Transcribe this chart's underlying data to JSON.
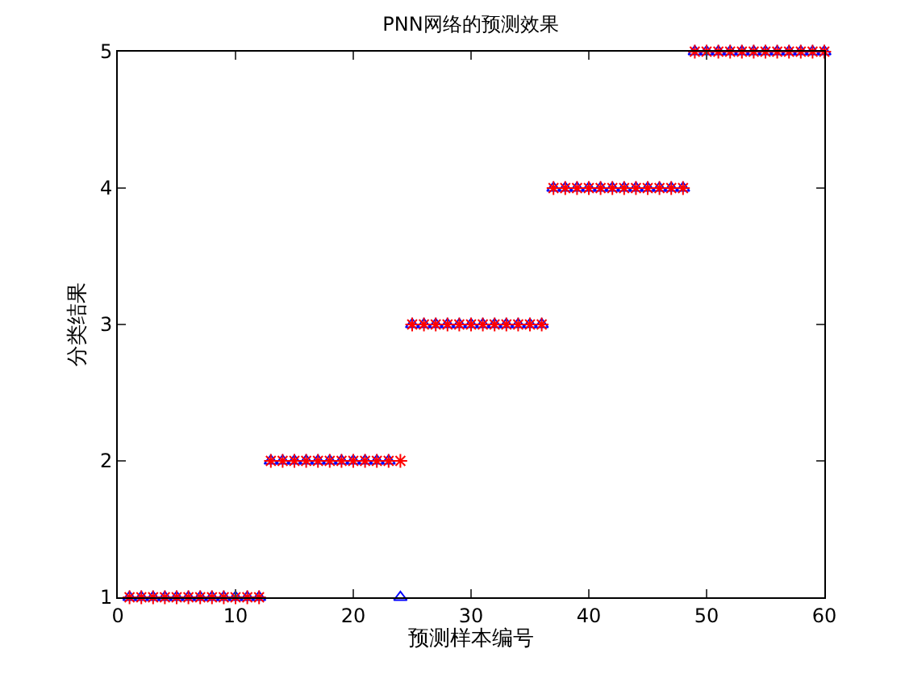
{
  "chart_data": {
    "type": "scatter",
    "title": "PNN网络的预测效果",
    "xlabel": "预测样本编号",
    "ylabel": "分类结果",
    "x": [
      1,
      2,
      3,
      4,
      5,
      6,
      7,
      8,
      9,
      10,
      11,
      12,
      13,
      14,
      15,
      16,
      17,
      18,
      19,
      20,
      21,
      22,
      23,
      24,
      25,
      26,
      27,
      28,
      29,
      30,
      31,
      32,
      33,
      34,
      35,
      36,
      37,
      38,
      39,
      40,
      41,
      42,
      43,
      44,
      45,
      46,
      47,
      48,
      49,
      50,
      51,
      52,
      53,
      54,
      55,
      56,
      57,
      58,
      59,
      60
    ],
    "series": [
      {
        "color": "#0000ff",
        "marker": "triangle",
        "values": [
          1,
          1,
          1,
          1,
          1,
          1,
          1,
          1,
          1,
          1,
          1,
          1,
          2,
          2,
          2,
          2,
          2,
          2,
          2,
          2,
          2,
          2,
          2,
          1,
          3,
          3,
          3,
          3,
          3,
          3,
          3,
          3,
          3,
          3,
          3,
          3,
          4,
          4,
          4,
          4,
          4,
          4,
          4,
          4,
          4,
          4,
          4,
          4,
          5,
          5,
          5,
          5,
          5,
          5,
          5,
          5,
          5,
          5,
          5,
          5
        ]
      },
      {
        "color": "#ff0000",
        "marker": "cross",
        "values": [
          1,
          1,
          1,
          1,
          1,
          1,
          1,
          1,
          1,
          1,
          1,
          1,
          2,
          2,
          2,
          2,
          2,
          2,
          2,
          2,
          2,
          2,
          2,
          2,
          3,
          3,
          3,
          3,
          3,
          3,
          3,
          3,
          3,
          3,
          3,
          3,
          4,
          4,
          4,
          4,
          4,
          4,
          4,
          4,
          4,
          4,
          4,
          4,
          5,
          5,
          5,
          5,
          5,
          5,
          5,
          5,
          5,
          5,
          5,
          5
        ]
      }
    ],
    "xlim": [
      0,
      60
    ],
    "xticks": [
      0,
      10,
      20,
      30,
      40,
      50,
      60
    ],
    "ylim": [
      1,
      5
    ],
    "yticks": [
      1,
      2,
      3,
      4,
      5
    ],
    "legend": false
  }
}
